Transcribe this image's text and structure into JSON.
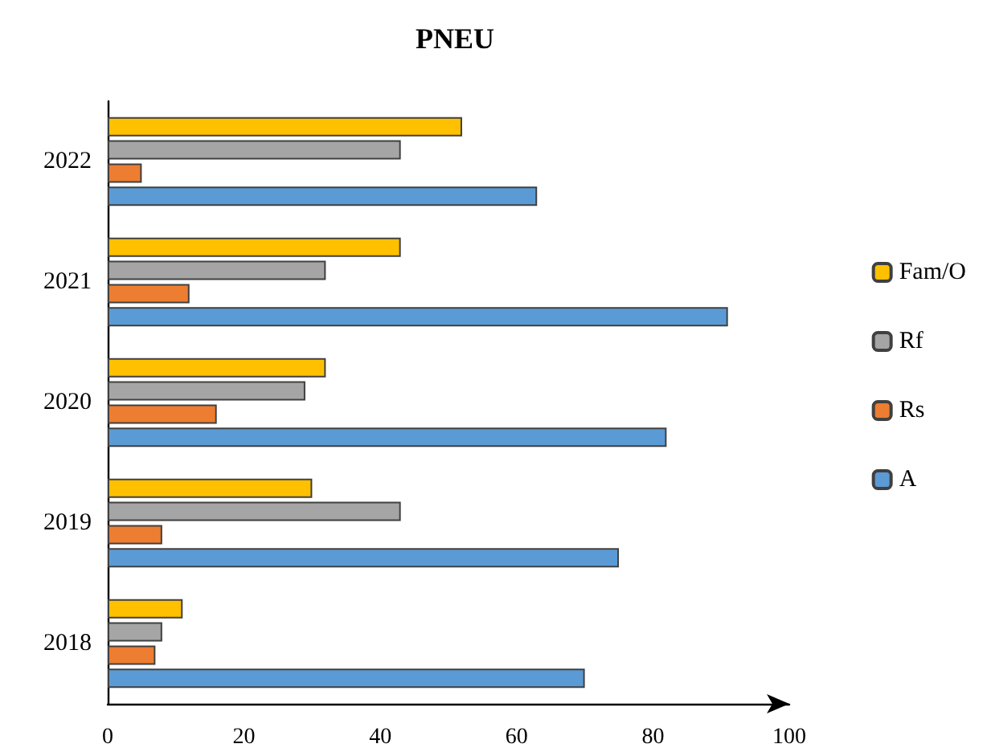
{
  "chart_data": {
    "type": "bar",
    "title": "PNEU",
    "orientation": "horizontal",
    "categories": [
      "2022",
      "2021",
      "2020",
      "2019",
      "2018"
    ],
    "series": [
      {
        "name": "A",
        "color": "#5b9bd5",
        "values": [
          63,
          91,
          82,
          75,
          70
        ]
      },
      {
        "name": "Rs",
        "color": "#ed7d31",
        "values": [
          5,
          12,
          16,
          8,
          7
        ]
      },
      {
        "name": "Rf",
        "color": "#a5a5a5",
        "values": [
          43,
          32,
          29,
          43,
          8
        ]
      },
      {
        "name": "Fam/O",
        "color": "#ffc000",
        "values": [
          52,
          43,
          32,
          30,
          11
        ]
      }
    ],
    "xlim": [
      0,
      100
    ],
    "xticks": [
      0,
      20,
      40,
      60,
      80,
      100
    ],
    "grid": false,
    "legend": "right"
  }
}
